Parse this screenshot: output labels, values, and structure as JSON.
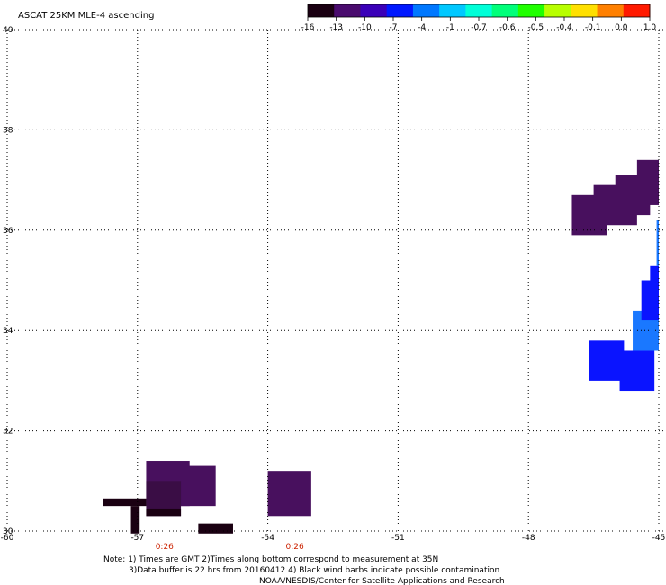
{
  "title": "ASCAT 25KM MLE-4 ascending",
  "colorbar": {
    "labels": [
      "-16",
      "-13",
      "-10",
      "-7",
      "-4",
      "-1",
      "-0.7",
      "-0.6",
      "-0.5",
      "-0.4",
      "-0.1",
      "0.0",
      "1.0"
    ],
    "colors": [
      "#1a0012",
      "#4a0b6e",
      "#3a00b8",
      "#0018ff",
      "#0078ff",
      "#00c8ff",
      "#00ffd8",
      "#00ff7a",
      "#20ff00",
      "#b8ff00",
      "#ffe000",
      "#ff8000",
      "#ff1a00"
    ]
  },
  "map": {
    "lon_range": [
      -60,
      -45
    ],
    "lat_range": [
      30,
      40
    ],
    "lon_ticks": [
      "-60",
      "-57",
      "-54",
      "-51",
      "-48",
      "-45"
    ],
    "lat_ticks": [
      "40",
      "38",
      "36",
      "34",
      "32",
      "30"
    ],
    "time_labels": [
      {
        "lon": -57,
        "text": "0:26"
      },
      {
        "lon": -54,
        "text": "0:26"
      }
    ],
    "cells": [
      {
        "lon0": -54.0,
        "lon1": -53.0,
        "lat0": 30.3,
        "lat1": 31.2,
        "color": "#48105e"
      },
      {
        "lon0": -56.8,
        "lon1": -55.8,
        "lat0": 30.5,
        "lat1": 31.4,
        "color": "#48105e"
      },
      {
        "lon0": -56.0,
        "lon1": -55.2,
        "lat0": 30.5,
        "lat1": 31.3,
        "color": "#48105e"
      },
      {
        "lon0": -56.8,
        "lon1": -56.0,
        "lat0": 30.3,
        "lat1": 31.0,
        "color": "#3a0d45"
      },
      {
        "lon0": -57.8,
        "lon1": -56.8,
        "lat0": 30.5,
        "lat1": 30.65,
        "color": "#1a0012"
      },
      {
        "lon0": -57.15,
        "lon1": -56.95,
        "lat0": 29.95,
        "lat1": 30.5,
        "color": "#1a0012"
      },
      {
        "lon0": -56.8,
        "lon1": -56.0,
        "lat0": 30.3,
        "lat1": 30.45,
        "color": "#1a0012"
      },
      {
        "lon0": -55.6,
        "lon1": -54.8,
        "lat0": 29.95,
        "lat1": 30.15,
        "color": "#1a0012"
      },
      {
        "lon0": -47.0,
        "lon1": -46.2,
        "lat0": 35.9,
        "lat1": 36.7,
        "color": "#48105e"
      },
      {
        "lon0": -46.5,
        "lon1": -45.5,
        "lat0": 36.1,
        "lat1": 36.9,
        "color": "#48105e"
      },
      {
        "lon0": -46.0,
        "lon1": -45.2,
        "lat0": 36.3,
        "lat1": 37.1,
        "color": "#48105e"
      },
      {
        "lon0": -45.5,
        "lon1": -45.0,
        "lat0": 36.5,
        "lat1": 37.4,
        "color": "#48105e"
      },
      {
        "lon0": -46.6,
        "lon1": -45.8,
        "lat0": 33.0,
        "lat1": 33.8,
        "color": "#0a14ff"
      },
      {
        "lon0": -45.9,
        "lon1": -45.1,
        "lat0": 32.8,
        "lat1": 33.6,
        "color": "#0a14ff"
      },
      {
        "lon0": -45.6,
        "lon1": -45.0,
        "lat0": 33.6,
        "lat1": 34.4,
        "color": "#1a78ff"
      },
      {
        "lon0": -45.4,
        "lon1": -45.0,
        "lat0": 34.2,
        "lat1": 35.0,
        "color": "#0a14ff"
      },
      {
        "lon0": -45.2,
        "lon1": -45.0,
        "lat0": 34.9,
        "lat1": 35.3,
        "color": "#0a14ff"
      },
      {
        "lon0": -45.05,
        "lon1": -45.0,
        "lat0": 35.3,
        "lat1": 36.2,
        "color": "#1a78ff"
      }
    ]
  },
  "notes": [
    "Note: 1) Times are GMT 2)Times along bottom correspond to measurement at 35N",
    "3)Data buffer is 22 hrs from 20160412 4) Black wind barbs indicate possible contamination",
    "NOAA/NESDIS/Center for Satellite Applications and Research"
  ]
}
